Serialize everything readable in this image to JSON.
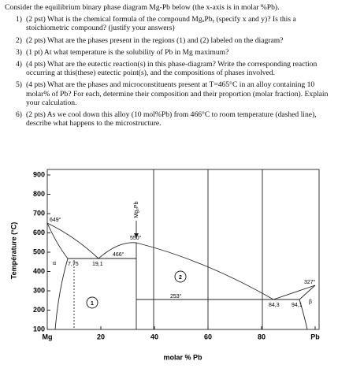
{
  "intro": "Consider the equilibrium binary phase diagram Mg-Pb below (the x-axis is in molar %Pb).",
  "questions": [
    {
      "number": "1)",
      "text": "(2 pst) What is the chemical formula of the compound MgₓPbᵧ (specify x and y)? Is this a stoichiometric compound? (justify your answers)"
    },
    {
      "number": "2)",
      "text": "(2 pts) What are the phases present in the regions (1) and (2) labeled on the diagram?"
    },
    {
      "number": "3)",
      "text": "(1 pt) At what temperature is the solubility of Pb in Mg maximum?"
    },
    {
      "number": "4)",
      "text": "(4 pts) What are the eutectic reaction(s) in this phase-diagram? Write the corresponding reaction occurring at this(these) eutectic point(s), and the compositions of phases involved."
    },
    {
      "number": "5)",
      "text": "(4 pts) What are the phases and microconstituents present at T=465°C in an alloy containing 10 molar% of Pb? For each, determine their composition and their proportion (molar fraction). Explain your calculation."
    },
    {
      "number": "6)",
      "text": "(2 pts) As we cool down this alloy (10 mol%Pb) from 466°C to room temperature (dashed line), describe what happens to the microstructure."
    }
  ],
  "figure": {
    "ylabel": "Température (°C)",
    "xlabel": "molar % Pb",
    "xlim": [
      0,
      100
    ],
    "ylim": [
      100,
      900
    ],
    "yticks": [
      100,
      200,
      300,
      400,
      500,
      600,
      700,
      800,
      900
    ],
    "xticks": [
      {
        "value": 0,
        "label": "Mg"
      },
      20,
      40,
      60,
      80,
      {
        "value": 100,
        "label": "Pb"
      }
    ],
    "annotations": [
      "649°",
      "550°",
      "466°",
      "253°",
      "327°",
      "7,75",
      "19,1",
      "84,3",
      "94,1",
      "α",
      "β",
      "1",
      "2",
      "Mg₂Pb"
    ]
  }
}
